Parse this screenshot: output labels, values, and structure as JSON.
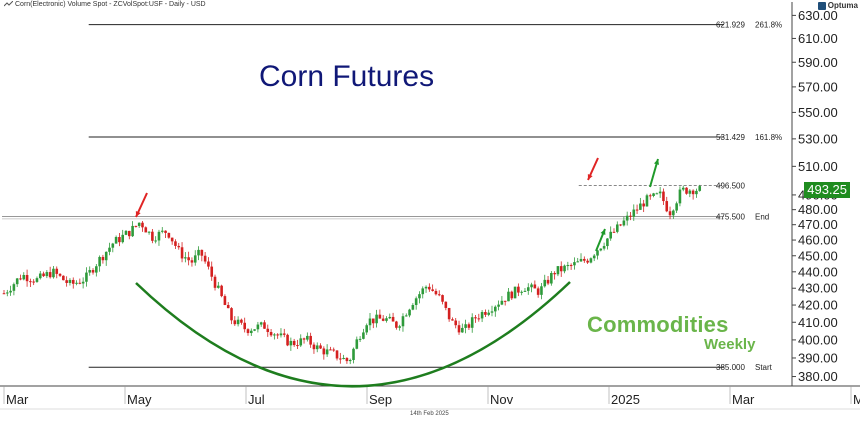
{
  "header": {
    "description": "Corn(Electronic) Volume Spot - ZCVolSpot:USF - Daily - USD",
    "brand": "Optuma"
  },
  "title": "Corn Futures",
  "watermark": {
    "line1": "Commodities",
    "line2": "Weekly"
  },
  "footer_date": "14th Feb 2025",
  "current_price": {
    "label": "493.25",
    "value": 493.25,
    "color": "#1f8c1f"
  },
  "colors": {
    "bull": "#2e9a3a",
    "bear": "#d42020",
    "arc": "#1e7d1e",
    "title": "#101877",
    "arrow_red": "#e02424",
    "arrow_green": "#1f9a2a"
  },
  "chart_data": {
    "type": "candlestick",
    "title": "Corn Futures",
    "y_axis": {
      "range": [
        375,
        633
      ],
      "ticks": [
        "630.00",
        "610.00",
        "590.00",
        "570.00",
        "550.00",
        "530.00",
        "510.00",
        "490.00",
        "480.00",
        "470.00",
        "460.00",
        "450.00",
        "440.00",
        "430.00",
        "420.00",
        "410.00",
        "400.00",
        "390.00",
        "380.00"
      ],
      "tick_values": [
        630,
        610,
        590,
        570,
        550,
        530,
        510,
        490,
        480,
        470,
        460,
        450,
        440,
        430,
        420,
        410,
        400,
        390,
        380
      ],
      "scale": "log"
    },
    "x_axis": {
      "labels": [
        "Mar",
        "May",
        "Jul",
        "Sep",
        "Nov",
        "2025",
        "Mar",
        "May"
      ],
      "label_months": [
        0,
        2,
        4,
        6,
        8,
        10,
        12,
        14
      ]
    },
    "levels": [
      {
        "value": 621.929,
        "value_label": "621.929",
        "tag": "261.8%",
        "style": "solid"
      },
      {
        "value": 531.429,
        "value_label": "531.429",
        "tag": "161.8%",
        "style": "solid"
      },
      {
        "value": 496.5,
        "value_label": "496.500",
        "tag": "",
        "style": "dashed"
      },
      {
        "value": 475.5,
        "value_label": "475.500",
        "tag": "End",
        "style": "solid"
      },
      {
        "value": 385.0,
        "value_label": "385.000",
        "tag": "Start",
        "style": "solid"
      }
    ],
    "price_path": [
      [
        0.0,
        427
      ],
      [
        0.3,
        438
      ],
      [
        0.55,
        435
      ],
      [
        0.8,
        440
      ],
      [
        1.1,
        432
      ],
      [
        1.35,
        436
      ],
      [
        1.5,
        444
      ],
      [
        1.8,
        458
      ],
      [
        2.1,
        466
      ],
      [
        2.25,
        472
      ],
      [
        2.45,
        462
      ],
      [
        2.7,
        466
      ],
      [
        2.9,
        452
      ],
      [
        3.1,
        446
      ],
      [
        3.25,
        452
      ],
      [
        3.5,
        432
      ],
      [
        3.75,
        412
      ],
      [
        4.0,
        406
      ],
      [
        4.3,
        408
      ],
      [
        4.55,
        402
      ],
      [
        4.75,
        398
      ],
      [
        5.0,
        400
      ],
      [
        5.2,
        395
      ],
      [
        5.45,
        392
      ],
      [
        5.7,
        388
      ],
      [
        5.85,
        401
      ],
      [
        6.0,
        411
      ],
      [
        6.3,
        412
      ],
      [
        6.5,
        408
      ],
      [
        6.75,
        422
      ],
      [
        7.0,
        432
      ],
      [
        7.2,
        424
      ],
      [
        7.4,
        410
      ],
      [
        7.6,
        405
      ],
      [
        7.8,
        413
      ],
      [
        8.1,
        420
      ],
      [
        8.35,
        426
      ],
      [
        8.6,
        431
      ],
      [
        8.85,
        428
      ],
      [
        9.1,
        440
      ],
      [
        9.4,
        444
      ],
      [
        9.65,
        448
      ],
      [
        9.85,
        456
      ],
      [
        10.1,
        466
      ],
      [
        10.35,
        476
      ],
      [
        10.6,
        486
      ],
      [
        10.85,
        490
      ],
      [
        11.0,
        478
      ],
      [
        11.2,
        493
      ],
      [
        11.4,
        494
      ],
      [
        11.55,
        493.25
      ]
    ],
    "series": [
      {
        "name": "Corn(Electronic) Volume Spot",
        "type": "candlestick"
      }
    ]
  }
}
